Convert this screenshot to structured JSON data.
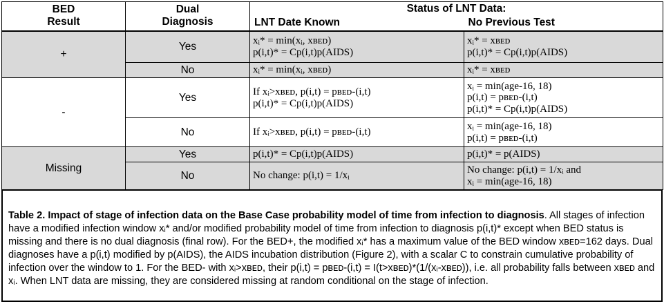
{
  "table": {
    "headers": {
      "bed_result": [
        "BED",
        "Result"
      ],
      "dual_diagnosis": [
        "Dual",
        "Diagnosis"
      ],
      "status": "Status of LNT Data:",
      "lnt_known": "LNT Date Known",
      "no_prev": "No Previous Test"
    },
    "groups": [
      {
        "bed": "+",
        "rows": [
          {
            "dual": "Yes",
            "known": [
              "xᵢ* = min(xᵢ, xʙᴇᴅ)",
              "p(i,t)* = Cp(i,t)p(AIDS)"
            ],
            "noprev": [
              "xᵢ* = xʙᴇᴅ",
              "p(i,t)* = Cp(i,t)p(AIDS)"
            ]
          },
          {
            "dual": "No",
            "known": [
              "xᵢ* = min(xᵢ, xʙᴇᴅ)"
            ],
            "noprev": [
              "xᵢ* = xʙᴇᴅ"
            ]
          }
        ]
      },
      {
        "bed": "-",
        "rows": [
          {
            "dual": "Yes",
            "known": [
              "If xᵢ>xʙᴇᴅ, p(i,t) = pʙᴇᴅ-(i,t)",
              "p(i,t)* = Cp(i,t)p(AIDS)"
            ],
            "noprev": [
              "xᵢ = min(age-16, 18)",
              "p(i,t) = pʙᴇᴅ-(i,t)",
              "p(i,t)* = Cp(i,t)p(AIDS)"
            ]
          },
          {
            "dual": "No",
            "known": [
              "If xᵢ>xʙᴇᴅ, p(i,t) = pʙᴇᴅ-(i,t)"
            ],
            "noprev": [
              "xᵢ = min(age-16, 18)",
              "p(i,t) = pʙᴇᴅ-(i,t)"
            ]
          }
        ]
      },
      {
        "bed": "Missing",
        "rows": [
          {
            "dual": "Yes",
            "known": [
              "p(i,t)* = Cp(i,t)p(AIDS)"
            ],
            "noprev": [
              "p(i,t)* = p(AIDS)"
            ]
          },
          {
            "dual": "No",
            "known": [
              "No change: p(i,t) = 1/xᵢ"
            ],
            "noprev": [
              "No change: p(i,t) = 1/xᵢ and",
              "xᵢ = min(age-16, 18)"
            ]
          }
        ]
      }
    ]
  },
  "caption": {
    "label": "Table 2. Impact of stage of infection data on the Base Case probability model of time from infection to diagnosis",
    "body": ". All stages of infection have a modified infection window xᵢ* and/or modified probability model of time from infection to diagnosis p(i,t)* except when BED status is missing and there is no dual diagnosis (final row). For the BED+, the modified xᵢ* has a maximum value of the BED window xʙᴇᴅ=162 days. Dual diagnoses have a p(i,t) modified by p(AIDS), the AIDS incubation distribution (Figure 2), with a scalar C to constrain cumulative probability of infection over the window to 1. For the BED- with xᵢ>xʙᴇᴅ, their p(i,t) = pʙᴇᴅ-(i,t) = I(t>xʙᴇᴅ)*(1/(xᵢ-xʙᴇᴅ)), i.e. all probability falls between xʙᴇᴅ and xᵢ. When LNT data are missing, they are considered missing at random conditional on the stage of infection."
  }
}
